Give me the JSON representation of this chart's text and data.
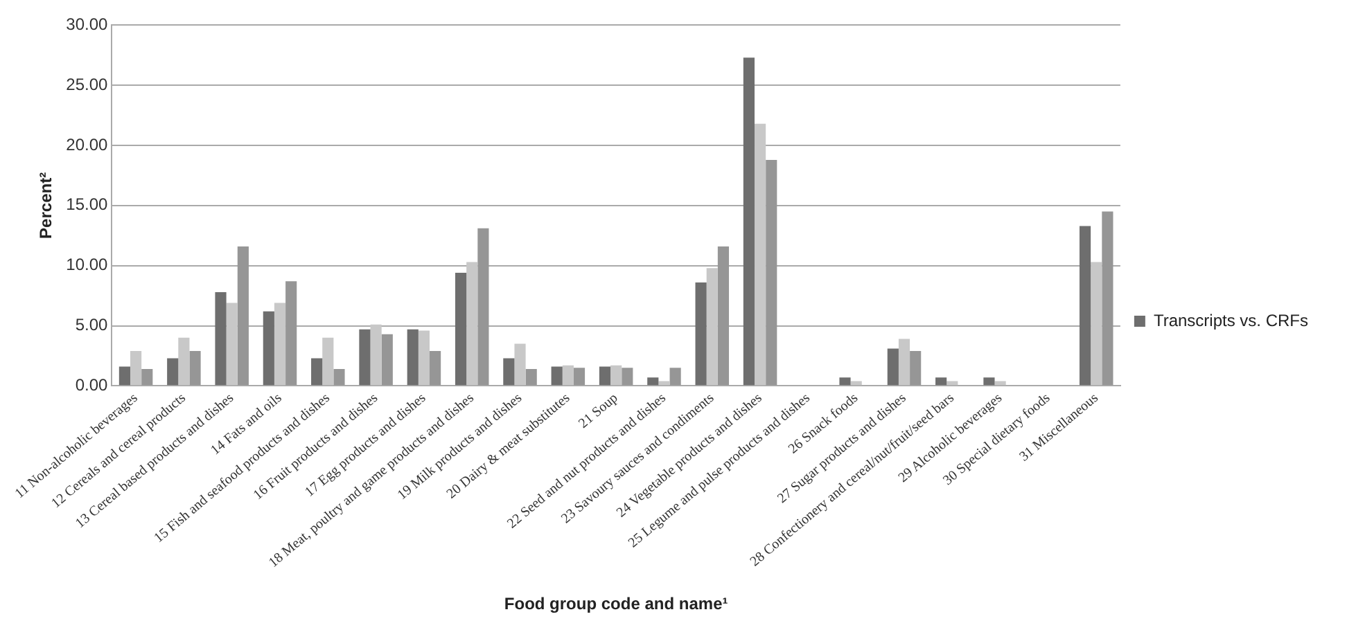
{
  "chart_data": {
    "type": "bar",
    "xlabel": "Food group code and name¹",
    "ylabel": "Percent²",
    "categories": [
      "11 Non-alcoholic beverages",
      "12 Cereals and cereal products",
      "13 Cereal based products and dishes",
      "14 Fats and oils",
      "15 Fish and seafood products and dishes",
      "16 Fruit products and dishes",
      "17 Egg products and dishes",
      "18 Meat, poultry and game products and dishes",
      "19 Milk products and dishes",
      "20 Dairy & meat substitutes",
      "21 Soup",
      "22 Seed and nut products and dishes",
      "23 Savoury sauces and condiments",
      "24 Vegetable products and dishes",
      "25 Legume and pulse products and dishes",
      "26 Snack foods",
      "27 Sugar products and dishes",
      "28 Confectionery and cereal/nut/fruit/seed bars",
      "29 Alcoholic beverages",
      "30 Special dietary foods",
      "31 Miscellaneous"
    ],
    "series": [
      {
        "name": "Transcripts vs. CRFs",
        "color": "#6e6e6e",
        "values": [
          1.6,
          2.3,
          7.8,
          6.2,
          2.3,
          4.7,
          4.7,
          9.4,
          2.3,
          1.6,
          1.6,
          0.7,
          8.6,
          27.3,
          0,
          0.7,
          3.1,
          0.7,
          0.7,
          0,
          13.3
        ]
      },
      {
        "color": "#c8c8c8",
        "values": [
          2.9,
          4.0,
          6.9,
          6.9,
          4.0,
          5.1,
          4.6,
          10.3,
          3.5,
          1.7,
          1.7,
          0.4,
          9.8,
          21.8,
          0,
          0.4,
          3.9,
          0.4,
          0.4,
          0,
          10.3
        ]
      },
      {
        "color": "#969696",
        "values": [
          1.4,
          2.9,
          11.6,
          8.7,
          1.4,
          4.3,
          2.9,
          13.1,
          1.4,
          1.5,
          1.5,
          1.5,
          11.6,
          18.8,
          0,
          0,
          2.9,
          0,
          0,
          0,
          14.5
        ]
      }
    ],
    "ylim": [
      0,
      30
    ],
    "yticks": [
      {
        "value": 0,
        "label": "0.00"
      },
      {
        "value": 5,
        "label": "5.00"
      },
      {
        "value": 10,
        "label": "10.00"
      },
      {
        "value": 15,
        "label": "15.00"
      },
      {
        "value": 20,
        "label": "20.00"
      },
      {
        "value": 25,
        "label": "25.00"
      },
      {
        "value": 30,
        "label": "30.00"
      }
    ],
    "grid": "y",
    "legend": "right"
  }
}
